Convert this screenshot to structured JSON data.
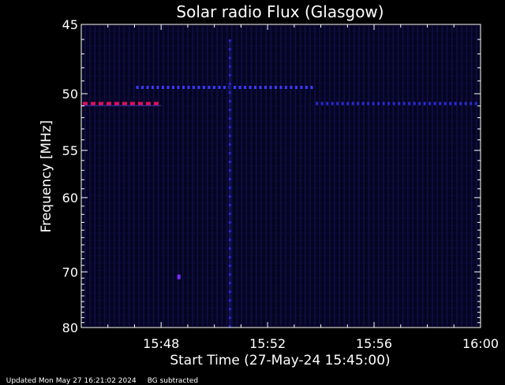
{
  "chart_data": {
    "type": "heatmap",
    "title": "Solar radio Flux (Glasgow)",
    "xlabel": "Start Time (27-May-24 15:45:00)",
    "ylabel": "Frequency [MHz]",
    "x_range_minutes": [
      0,
      15
    ],
    "xlim": [
      "15:45",
      "16:00"
    ],
    "ylim": [
      45,
      80
    ],
    "y_scale": "reciprocal",
    "x_ticks": [
      {
        "minute": 3,
        "label": "15:48"
      },
      {
        "minute": 7,
        "label": "15:52"
      },
      {
        "minute": 11,
        "label": "15:56"
      },
      {
        "minute": 15,
        "label": "16:00"
      }
    ],
    "y_ticks": [
      {
        "value": 45,
        "label": "45"
      },
      {
        "value": 50,
        "label": "50"
      },
      {
        "value": 55,
        "label": "55"
      },
      {
        "value": 60,
        "label": "60"
      },
      {
        "value": 70,
        "label": "70"
      },
      {
        "value": 80,
        "label": "80"
      }
    ],
    "colormap": [
      "#000000",
      "#0a0a3c",
      "#2020ff",
      "#8000ff",
      "#ff0066"
    ],
    "features": [
      {
        "kind": "horizontal-band",
        "freq_mhz": 49.5,
        "time_start": "15:47:00",
        "time_end": "15:53:45",
        "intensity": "medium",
        "color": "#3a3aff"
      },
      {
        "kind": "horizontal-band",
        "freq_mhz": 50.8,
        "time_start": "15:45:00",
        "time_end": "15:48:00",
        "intensity": "high",
        "color": "#e0105a"
      },
      {
        "kind": "horizontal-band",
        "freq_mhz": 50.8,
        "time_start": "15:53:45",
        "time_end": "16:00:00",
        "intensity": "low",
        "color": "#2a2ad0"
      },
      {
        "kind": "vertical-burst",
        "time": "15:50:35",
        "freq_start": 46,
        "freq_end": 80,
        "intensity": "low",
        "color": "#2828c8"
      },
      {
        "kind": "point",
        "time": "15:48:40",
        "freq_mhz": 70.8,
        "intensity": "medium",
        "color": "#7a2aff"
      }
    ]
  },
  "footer": {
    "updated": "Updated Mon May 27 16:21:02 2024",
    "note": "BG subtracted"
  }
}
